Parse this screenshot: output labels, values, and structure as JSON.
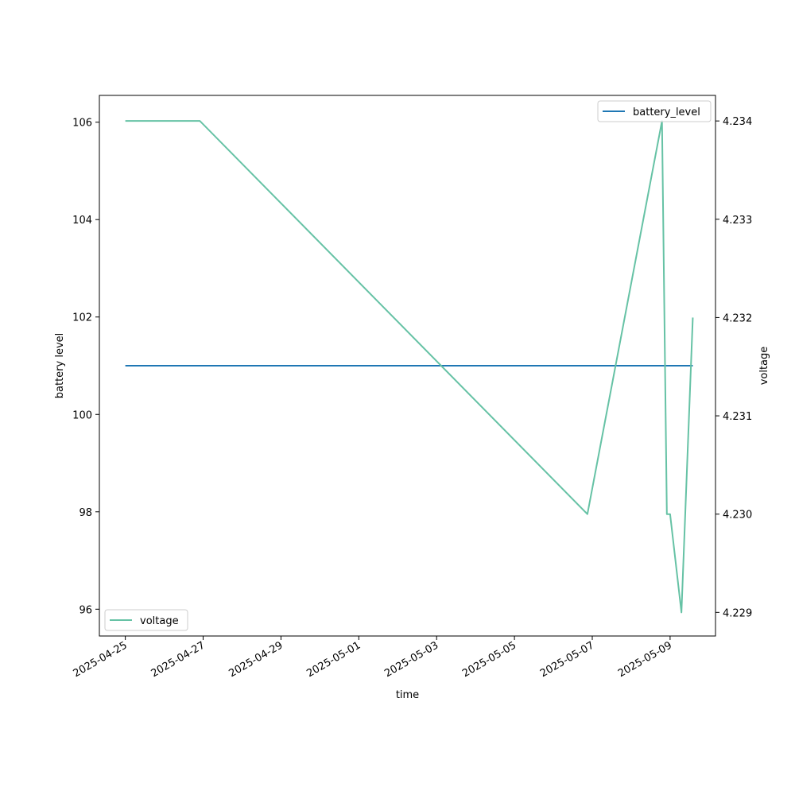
{
  "chart_data": {
    "type": "line",
    "xlabel": "time",
    "ylabel_left": "battery level",
    "ylabel_right": "voltage",
    "xlim": [
      "2025-04-24 08:00",
      "2025-05-10 04:00"
    ],
    "ylim_left": [
      95.45,
      106.55
    ],
    "ylim_right": [
      4.22876,
      4.23426
    ],
    "x_ticks": [
      "2025-04-25",
      "2025-04-27",
      "2025-04-29",
      "2025-05-01",
      "2025-05-03",
      "2025-05-05",
      "2025-05-07",
      "2025-05-09"
    ],
    "y_ticks_left": [
      96,
      98,
      100,
      102,
      104,
      106
    ],
    "y_ticks_right": [
      "4.229",
      "4.230",
      "4.231",
      "4.232",
      "4.233",
      "4.234"
    ],
    "grid": false,
    "series": [
      {
        "name": "battery_level",
        "axis": "left",
        "color": "#1f77b4",
        "legend_position": "upper right",
        "points": [
          {
            "x": "2025-04-25 00:00",
            "y": 101
          },
          {
            "x": "2025-05-09 14:00",
            "y": 101
          }
        ]
      },
      {
        "name": "voltage",
        "axis": "right",
        "color": "#66c2a5",
        "legend_position": "lower left",
        "points": [
          {
            "x": "2025-04-25 00:00",
            "y": 4.234
          },
          {
            "x": "2025-04-26 22:00",
            "y": 4.234
          },
          {
            "x": "2025-05-06 21:00",
            "y": 4.23
          },
          {
            "x": "2025-05-08 19:00",
            "y": 4.234
          },
          {
            "x": "2025-05-08 22:00",
            "y": 4.23
          },
          {
            "x": "2025-05-09 00:00",
            "y": 4.23
          },
          {
            "x": "2025-05-09 07:00",
            "y": 4.229
          },
          {
            "x": "2025-05-09 14:00",
            "y": 4.232
          }
        ]
      }
    ]
  }
}
